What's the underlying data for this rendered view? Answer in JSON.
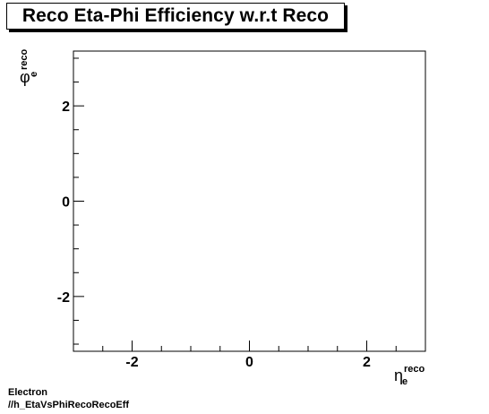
{
  "chart_data": {
    "type": "heatmap",
    "title": "Reco Eta-Phi Efficiency w.r.t Reco",
    "xlabel": {
      "symbol": "η",
      "superscript": "reco",
      "subscript": "e"
    },
    "ylabel": {
      "symbol": "φ",
      "superscript": "reco",
      "subscript": "e"
    },
    "xlim": [
      -3,
      3
    ],
    "ylim": [
      -3.15,
      3.15
    ],
    "x_ticks": [
      -2,
      0,
      2
    ],
    "x_tick_labels": [
      "-2",
      "0",
      "2"
    ],
    "y_ticks": [
      -2,
      0,
      2
    ],
    "y_tick_labels": [
      "-2",
      "0",
      "2"
    ],
    "x_minor_step": 0.5,
    "y_minor_step": 0.5,
    "grid": false,
    "values": []
  },
  "footer": {
    "line1": "Electron",
    "line2": "//h_EtaVsPhiRecoRecoEff"
  }
}
